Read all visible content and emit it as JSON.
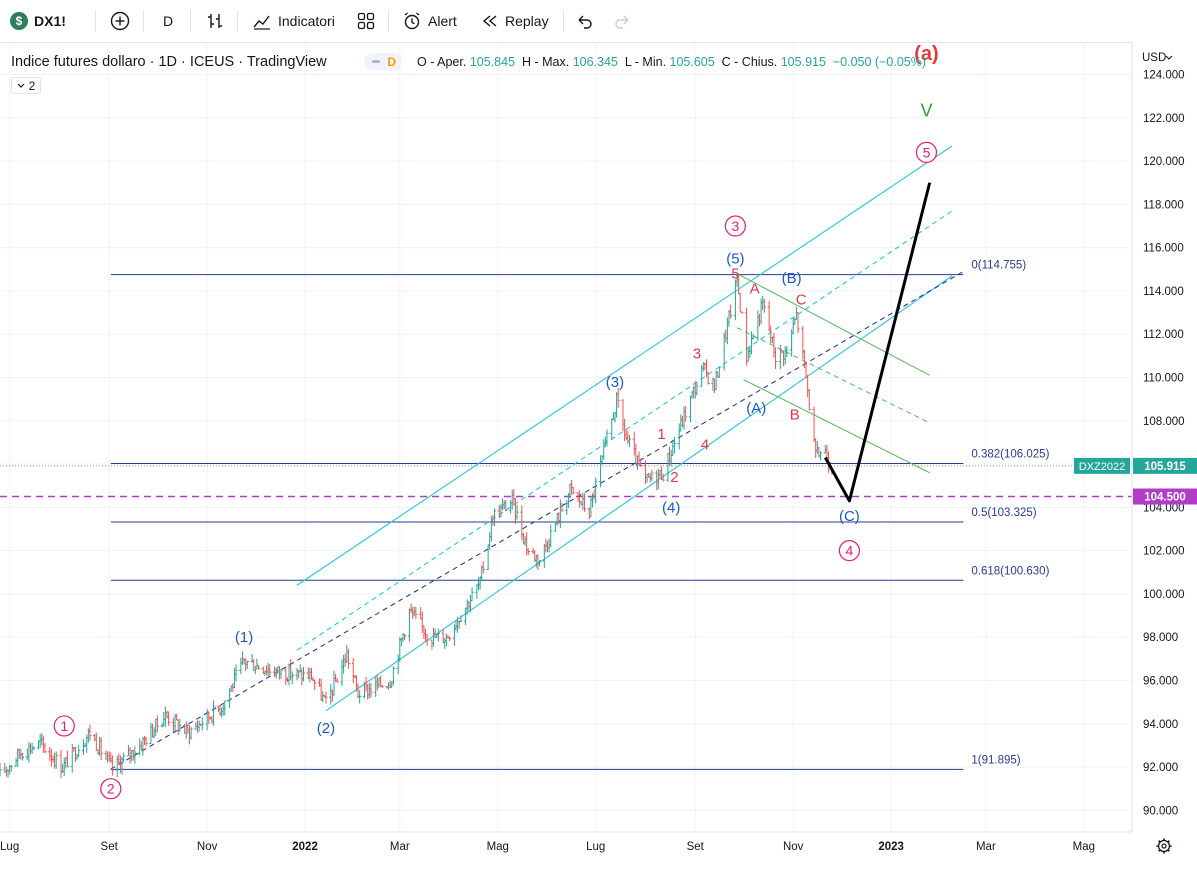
{
  "toolbar": {
    "symbol": "DX1!",
    "interval": "D",
    "indicators_label": "Indicatori",
    "alert_label": "Alert",
    "replay_label": "Replay"
  },
  "header": {
    "title": "Indice futures dollaro · 1D · ICEUS · TradingView",
    "badge": "D",
    "ohlc": {
      "o_label": "O - Aper.",
      "o_value": "105.845",
      "h_label": "H - Max.",
      "h_value": "106.345",
      "l_label": "L - Min.",
      "l_value": "105.605",
      "c_label": "C - Chius.",
      "c_value": "105.915",
      "change": "−0.050 (−0.05%)"
    },
    "legend_count": "2"
  },
  "price_axis": {
    "currency": "USD",
    "ticks": [
      "124.000",
      "122.000",
      "120.000",
      "118.000",
      "116.000",
      "114.000",
      "112.000",
      "110.000",
      "108.000",
      "106.000",
      "104.000",
      "102.000",
      "100.000",
      "98.000",
      "96.000",
      "94.000",
      "92.000",
      "90.000"
    ],
    "last_symbol": "DXZ2022",
    "last_price": "105.915",
    "level_label": "104.500"
  },
  "time_axis": {
    "labels": [
      "Lug",
      "Set",
      "Nov",
      "2022",
      "Mar",
      "Mag",
      "Lug",
      "Set",
      "Nov",
      "2023",
      "Mar",
      "Mag"
    ]
  },
  "colors": {
    "up": "#26a69a",
    "down": "#ef5350",
    "channel": "#26c6da",
    "fib": "#2a3b8f",
    "level": "#b03cc9",
    "pink": "#e91e63",
    "blue_wave": "#1e56c8",
    "red_wave": "#e8384f",
    "green_wave": "#3a9a3a"
  },
  "chart_data": {
    "type": "candlestick",
    "symbol": "DXZ2022",
    "interval": "1D",
    "ylim": [
      89,
      125.5
    ],
    "x_range": [
      "2021-06-25",
      "2023-05-31"
    ],
    "close_path": [
      [
        "2021-06-25",
        91.6
      ],
      [
        "2021-07-08",
        92.7
      ],
      [
        "2021-07-20",
        93.1
      ],
      [
        "2021-08-03",
        92.0
      ],
      [
        "2021-08-20",
        93.6
      ],
      [
        "2021-09-03",
        91.9
      ],
      [
        "2021-09-20",
        93.0
      ],
      [
        "2021-10-06",
        94.4
      ],
      [
        "2021-10-20",
        93.6
      ],
      [
        "2021-11-10",
        94.8
      ],
      [
        "2021-11-24",
        96.9
      ],
      [
        "2021-12-15",
        96.4
      ],
      [
        "2022-01-05",
        96.2
      ],
      [
        "2022-01-14",
        94.9
      ],
      [
        "2022-01-27",
        97.2
      ],
      [
        "2022-02-03",
        95.4
      ],
      [
        "2022-02-23",
        96.0
      ],
      [
        "2022-03-07",
        99.2
      ],
      [
        "2022-03-20",
        98.0
      ],
      [
        "2022-03-30",
        98.0
      ],
      [
        "2022-04-20",
        100.5
      ],
      [
        "2022-04-28",
        103.6
      ],
      [
        "2022-05-10",
        104.3
      ],
      [
        "2022-05-20",
        102.0
      ],
      [
        "2022-05-27",
        101.6
      ],
      [
        "2022-06-15",
        104.8
      ],
      [
        "2022-06-27",
        103.8
      ],
      [
        "2022-07-14",
        108.9
      ],
      [
        "2022-07-20",
        107.2
      ],
      [
        "2022-08-01",
        105.2
      ],
      [
        "2022-08-12",
        105.6
      ],
      [
        "2022-08-29",
        109.0
      ],
      [
        "2022-09-06",
        110.4
      ],
      [
        "2022-09-13",
        109.6
      ],
      [
        "2022-09-27",
        114.5
      ],
      [
        "2022-10-03",
        111.0
      ],
      [
        "2022-10-13",
        113.4
      ],
      [
        "2022-10-21",
        111.0
      ],
      [
        "2022-10-28",
        111.2
      ],
      [
        "2022-11-03",
        112.9
      ],
      [
        "2022-11-09",
        110.0
      ],
      [
        "2022-11-15",
        106.3
      ],
      [
        "2022-11-20",
        106.8
      ],
      [
        "2022-11-25",
        105.9
      ]
    ],
    "fib_levels": [
      {
        "ratio": "0",
        "value": 114.755,
        "label": "0(114.755)"
      },
      {
        "ratio": "0.382",
        "value": 106.025,
        "label": "0.382(106.025)"
      },
      {
        "ratio": "0.5",
        "value": 103.325,
        "label": "0.5(103.325)"
      },
      {
        "ratio": "0.618",
        "value": 100.63,
        "label": "0.618(100.630)"
      },
      {
        "ratio": "1",
        "value": 91.895,
        "label": "1(91.895)"
      }
    ],
    "horizontal_level": 104.5,
    "projection_path": [
      [
        "2022-11-21",
        106.3
      ],
      [
        "2022-12-06",
        104.3
      ],
      [
        "2023-01-25",
        119.0
      ]
    ],
    "wave_labels": [
      {
        "text": "1",
        "date": "2021-08-04",
        "price": 93.9,
        "style": "circle"
      },
      {
        "text": "2",
        "date": "2021-09-02",
        "price": 91.0,
        "style": "circle"
      },
      {
        "text": "(1)",
        "date": "2021-11-24",
        "price": 98.0,
        "style": "blue"
      },
      {
        "text": "(2)",
        "date": "2022-01-14",
        "price": 93.8,
        "style": "blue"
      },
      {
        "text": "(3)",
        "date": "2022-07-13",
        "price": 109.8,
        "style": "blue"
      },
      {
        "text": "(4)",
        "date": "2022-08-17",
        "price": 104.0,
        "style": "blue"
      },
      {
        "text": "(5)",
        "date": "2022-09-26",
        "price": 115.5,
        "style": "blue"
      },
      {
        "text": "3",
        "date": "2022-09-26",
        "price": 117.0,
        "style": "circle"
      },
      {
        "text": "5",
        "date": "2022-09-26",
        "price": 114.8,
        "style": "red"
      },
      {
        "text": "1",
        "date": "2022-08-11",
        "price": 107.4,
        "style": "red"
      },
      {
        "text": "2",
        "date": "2022-08-19",
        "price": 105.4,
        "style": "red"
      },
      {
        "text": "3",
        "date": "2022-09-02",
        "price": 111.1,
        "style": "red"
      },
      {
        "text": "4",
        "date": "2022-09-07",
        "price": 106.9,
        "style": "red"
      },
      {
        "text": "A",
        "date": "2022-10-08",
        "price": 114.1,
        "style": "red"
      },
      {
        "text": "B",
        "date": "2022-11-02",
        "price": 108.3,
        "style": "red"
      },
      {
        "text": "C",
        "date": "2022-11-06",
        "price": 113.6,
        "style": "red"
      },
      {
        "text": "(A)",
        "date": "2022-10-09",
        "price": 108.6,
        "style": "blue"
      },
      {
        "text": "(B)",
        "date": "2022-10-31",
        "price": 114.6,
        "style": "blue"
      },
      {
        "text": "(C)",
        "date": "2022-12-06",
        "price": 103.6,
        "style": "blue"
      },
      {
        "text": "4",
        "date": "2022-12-06",
        "price": 102.0,
        "style": "circle"
      },
      {
        "text": "5",
        "date": "2023-01-23",
        "price": 120.4,
        "style": "circle"
      },
      {
        "text": "V",
        "date": "2023-01-23",
        "price": 122.3,
        "style": "green"
      },
      {
        "text": "(a)",
        "date": "2023-01-23",
        "price": 124.9,
        "style": "redbig"
      }
    ],
    "channels": [
      {
        "kind": "upper",
        "from": [
          "2021-12-27",
          100.4
        ],
        "to": [
          "2023-02-08",
          120.7
        ],
        "dashed": false
      },
      {
        "kind": "middle",
        "from": [
          "2021-12-27",
          97.4
        ],
        "to": [
          "2023-02-08",
          117.7
        ],
        "dashed": true
      },
      {
        "kind": "lower",
        "from": [
          "2022-01-14",
          94.6
        ],
        "to": [
          "2023-02-08",
          114.7
        ],
        "dashed": false
      },
      {
        "kind": "base",
        "from": [
          "2021-09-02",
          91.9
        ],
        "to": [
          "2023-02-15",
          114.9
        ],
        "dashed": true
      },
      {
        "kind": "corrective_upper",
        "from": [
          "2022-09-27",
          114.8
        ],
        "to": [
          "2023-01-25",
          110.1
        ],
        "dashed": false
      },
      {
        "kind": "corrective_mid",
        "from": [
          "2022-09-27",
          112.3
        ],
        "to": [
          "2023-01-25",
          107.9
        ],
        "dashed": true
      },
      {
        "kind": "corrective_lower",
        "from": [
          "2022-10-01",
          109.9
        ],
        "to": [
          "2023-01-25",
          105.6
        ],
        "dashed": false
      }
    ]
  }
}
